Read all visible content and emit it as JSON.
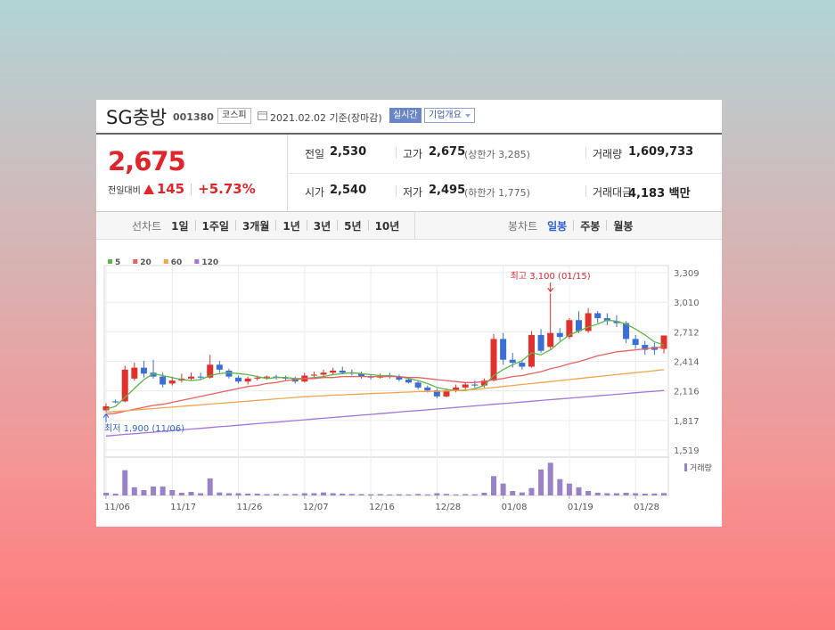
{
  "header": {
    "name": "SG충방",
    "code": "001380",
    "market": "코스피",
    "date": "2021.02.02",
    "basis": "기준(장마감)",
    "realtime": "실시간",
    "company_info": "기업개요"
  },
  "price": {
    "current": "2,675",
    "change_label": "전일대비",
    "change": "145",
    "change_rate": "+5.73%"
  },
  "stats": [
    [
      {
        "label": "전일",
        "value": "2,530"
      },
      {
        "label": "고가",
        "value": "2,675",
        "note": "(상한가 3,285)"
      },
      {
        "label": "거래량",
        "value": "1,609,733"
      }
    ],
    [
      {
        "label": "시가",
        "value": "2,540"
      },
      {
        "label": "저가",
        "value": "2,495",
        "note": "(하한가 1,775)"
      },
      {
        "label": "거래대금",
        "value": "4,183 백만"
      }
    ]
  ],
  "tabs": {
    "line_chart": {
      "label": "선차트",
      "periods": [
        "1일",
        "1주일",
        "3개월",
        "1년",
        "3년",
        "5년",
        "10년"
      ]
    },
    "candle_chart": {
      "label": "봉차트",
      "periods": [
        "일봉",
        "주봉",
        "월봉"
      ]
    }
  },
  "chart_data": {
    "type": "candlestick",
    "categories": [
      "11/06",
      null,
      null,
      null,
      null,
      null,
      null,
      "11/17",
      null,
      null,
      null,
      null,
      null,
      null,
      "11/26",
      null,
      null,
      null,
      null,
      null,
      null,
      "12/07",
      null,
      null,
      null,
      null,
      null,
      null,
      "12/16",
      null,
      null,
      null,
      null,
      null,
      null,
      "12/28",
      null,
      null,
      null,
      null,
      null,
      null,
      "01/08",
      null,
      null,
      null,
      null,
      null,
      null,
      "01/19",
      null,
      null,
      null,
      null,
      null,
      null,
      "01/28",
      null,
      null,
      null
    ],
    "open": [
      1920,
      2010,
      2010,
      2240,
      2350,
      2300,
      2260,
      2190,
      2220,
      2240,
      2260,
      2250,
      2380,
      2320,
      2250,
      2210,
      2240,
      2250,
      2260,
      2250,
      2240,
      2210,
      2270,
      2280,
      2300,
      2320,
      2300,
      2290,
      2260,
      2250,
      2270,
      2260,
      2230,
      2200,
      2150,
      2120,
      2060,
      2120,
      2150,
      2180,
      2170,
      2220,
      2640,
      2430,
      2400,
      2360,
      2680,
      2560,
      2700,
      2660,
      2830,
      2720,
      2900,
      2850,
      2820,
      2800,
      2640,
      2580,
      2560,
      2540
    ],
    "high": [
      1990,
      2030,
      2370,
      2400,
      2420,
      2430,
      2300,
      2260,
      2290,
      2300,
      2300,
      2480,
      2420,
      2340,
      2270,
      2260,
      2270,
      2270,
      2280,
      2270,
      2260,
      2300,
      2310,
      2330,
      2350,
      2360,
      2330,
      2310,
      2280,
      2290,
      2300,
      2280,
      2250,
      2220,
      2170,
      2140,
      2140,
      2180,
      2200,
      2220,
      2240,
      2690,
      2700,
      2500,
      2420,
      2720,
      2740,
      3100,
      2750,
      2850,
      2920,
      2950,
      2920,
      2900,
      2880,
      2820,
      2680,
      2620,
      2600,
      2675
    ],
    "low": [
      1900,
      1990,
      2000,
      2220,
      2250,
      2240,
      2150,
      2170,
      2200,
      2220,
      2230,
      2240,
      2300,
      2240,
      2190,
      2180,
      2220,
      2230,
      2230,
      2220,
      2190,
      2200,
      2240,
      2260,
      2280,
      2290,
      2270,
      2240,
      2230,
      2240,
      2240,
      2210,
      2190,
      2130,
      2100,
      2040,
      2050,
      2100,
      2130,
      2150,
      2150,
      2210,
      2380,
      2350,
      2330,
      2350,
      2500,
      2540,
      2620,
      2640,
      2700,
      2700,
      2800,
      2780,
      2760,
      2600,
      2540,
      2480,
      2480,
      2495
    ],
    "close": [
      1960,
      2000,
      2330,
      2350,
      2290,
      2260,
      2180,
      2220,
      2240,
      2260,
      2250,
      2380,
      2330,
      2260,
      2210,
      2240,
      2250,
      2260,
      2250,
      2240,
      2210,
      2270,
      2280,
      2300,
      2320,
      2300,
      2290,
      2260,
      2250,
      2270,
      2260,
      2230,
      2200,
      2150,
      2120,
      2060,
      2120,
      2150,
      2180,
      2170,
      2220,
      2640,
      2430,
      2400,
      2360,
      2680,
      2520,
      2700,
      2660,
      2830,
      2720,
      2900,
      2850,
      2820,
      2800,
      2640,
      2580,
      2530,
      2530,
      2675
    ],
    "up_color": "#e0312c",
    "down_color": "#3a6fd6",
    "series": [
      {
        "name": "5",
        "color": "#5db548",
        "values": [
          1930,
          1960,
          2050,
          2140,
          2230,
          2290,
          2270,
          2250,
          2230,
          2220,
          2230,
          2270,
          2290,
          2300,
          2290,
          2280,
          2260,
          2240,
          2250,
          2250,
          2240,
          2240,
          2250,
          2260,
          2280,
          2290,
          2300,
          2290,
          2280,
          2270,
          2270,
          2260,
          2240,
          2220,
          2190,
          2150,
          2130,
          2120,
          2120,
          2140,
          2170,
          2270,
          2330,
          2380,
          2420,
          2500,
          2480,
          2530,
          2610,
          2680,
          2720,
          2760,
          2790,
          2830,
          2820,
          2790,
          2740,
          2680,
          2610,
          2580
        ]
      },
      {
        "name": "20",
        "color": "#e8605f",
        "values": [
          1880,
          1890,
          1910,
          1930,
          1950,
          1970,
          1980,
          2000,
          2020,
          2040,
          2060,
          2080,
          2100,
          2120,
          2140,
          2160,
          2170,
          2190,
          2200,
          2220,
          2230,
          2240,
          2240,
          2250,
          2250,
          2260,
          2260,
          2260,
          2260,
          2260,
          2260,
          2260,
          2250,
          2250,
          2240,
          2230,
          2220,
          2210,
          2200,
          2200,
          2210,
          2230,
          2240,
          2260,
          2270,
          2290,
          2310,
          2340,
          2360,
          2390,
          2410,
          2440,
          2470,
          2490,
          2510,
          2520,
          2530,
          2540,
          2550,
          2560
        ]
      },
      {
        "name": "60",
        "color": "#f3a44e",
        "values": [
          1900,
          1908,
          1915,
          1923,
          1930,
          1937,
          1945,
          1952,
          1960,
          1967,
          1975,
          1982,
          1990,
          1997,
          2005,
          2012,
          2020,
          2027,
          2035,
          2042,
          2050,
          2057,
          2062,
          2067,
          2072,
          2076,
          2080,
          2084,
          2088,
          2092,
          2096,
          2100,
          2104,
          2108,
          2110,
          2112,
          2115,
          2120,
          2125,
          2130,
          2140,
          2150,
          2160,
          2170,
          2180,
          2190,
          2200,
          2210,
          2220,
          2230,
          2240,
          2250,
          2260,
          2270,
          2280,
          2290,
          2300,
          2310,
          2320,
          2330
        ]
      },
      {
        "name": "120",
        "color": "#a574d6",
        "values": [
          1660,
          1668,
          1676,
          1684,
          1691,
          1699,
          1707,
          1715,
          1722,
          1730,
          1738,
          1746,
          1754,
          1761,
          1769,
          1777,
          1785,
          1793,
          1800,
          1808,
          1816,
          1824,
          1832,
          1839,
          1847,
          1855,
          1863,
          1871,
          1878,
          1886,
          1894,
          1902,
          1910,
          1917,
          1925,
          1933,
          1941,
          1949,
          1956,
          1964,
          1972,
          1980,
          1988,
          1995,
          2003,
          2011,
          2019,
          2027,
          2034,
          2042,
          2050,
          2058,
          2066,
          2073,
          2081,
          2089,
          2097,
          2105,
          2112,
          2120
        ]
      }
    ],
    "volume": {
      "name": "거래량",
      "color": "#9a82c8",
      "values": [
        1800000,
        1200000,
        17000000,
        5500000,
        3600000,
        6000000,
        6000000,
        3600000,
        1800000,
        2400000,
        1500000,
        11500000,
        2000000,
        1500000,
        1500000,
        1200000,
        1200000,
        900000,
        1000000,
        900000,
        1000000,
        1500000,
        1500000,
        2000000,
        1500000,
        1200000,
        1000000,
        900000,
        800000,
        900000,
        700000,
        800000,
        700000,
        1000000,
        700000,
        1500000,
        1000000,
        700000,
        900000,
        800000,
        1800000,
        13000000,
        8000000,
        3000000,
        2000000,
        5000000,
        17500000,
        22000000,
        11000000,
        8000000,
        5500000,
        3000000,
        1800000,
        1500000,
        1500000,
        1800000,
        1500000,
        1200000,
        1300000,
        1609733
      ],
      "ylim": [
        0,
        24000000
      ]
    },
    "ylim": [
      1519,
      3309
    ],
    "yticks": [
      {
        "value": 3309,
        "label": "3,309"
      },
      {
        "value": 3010,
        "label": "3,010"
      },
      {
        "value": 2712,
        "label": "2,712"
      },
      {
        "value": 2414,
        "label": "2,414"
      },
      {
        "value": 2116,
        "label": "2,116"
      },
      {
        "value": 1817,
        "label": "1,817"
      },
      {
        "value": 1519,
        "label": "1,519"
      }
    ],
    "grid": true,
    "annotations": {
      "max": {
        "text": "최고 3,100 (01/15)",
        "index": 47
      },
      "min": {
        "text": "최저 1,900 (11/06)",
        "index": 0
      }
    }
  }
}
